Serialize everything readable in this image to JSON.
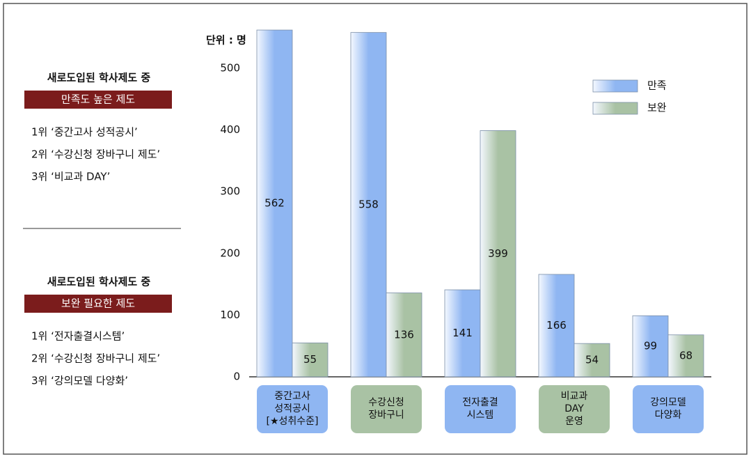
{
  "panel": [
    {
      "title": "새로도입된 학사제도 중",
      "subtitle": "만족도 높은 제도",
      "items": [
        "1위 ‘중간고사 성적공시’",
        "2위 ‘수강신청 장바구니 제도’",
        "3위 ‘비교과 DAY’"
      ]
    },
    {
      "title": "새로도입된 학사제도 중",
      "subtitle": "보완 필요한 제도",
      "items": [
        "1위 ‘전자출결시스템’",
        "2위 ‘수강신청 장바구니 제도’",
        "3위 ‘강의모델 다양화’"
      ]
    }
  ],
  "chart_data": {
    "type": "bar",
    "y_label": "단위 : 명",
    "categories": [
      [
        "중간고사",
        "성적공시",
        "[★성취수준]"
      ],
      [
        "수강신청",
        "장바구니"
      ],
      [
        "전자출결",
        "시스템"
      ],
      [
        "비교과",
        "DAY",
        "운영"
      ],
      [
        "강의모델",
        "다양화"
      ]
    ],
    "series": [
      {
        "name": "만족",
        "color": "#8fb6f2",
        "values": [
          562,
          558,
          141,
          166,
          99
        ]
      },
      {
        "name": "보완",
        "color": "#a9c2a4",
        "values": [
          55,
          136,
          399,
          54,
          68
        ]
      }
    ],
    "ylim": [
      0,
      570
    ],
    "yticks": [
      0,
      100,
      200,
      300,
      400,
      500
    ],
    "legend": "upper right"
  }
}
